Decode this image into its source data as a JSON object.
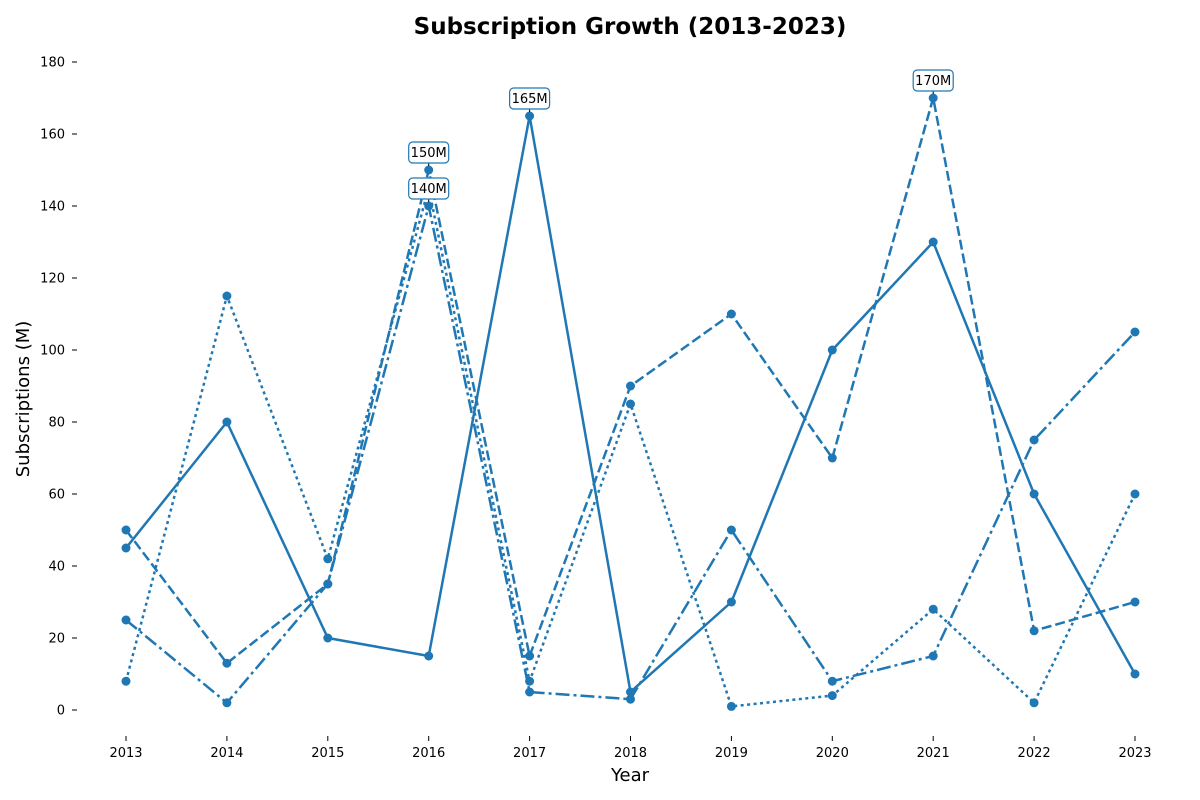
{
  "chart_data": {
    "type": "line",
    "title": "Subscription Growth (2013-2023)",
    "xlabel": "Year",
    "ylabel": "Subscriptions (M)",
    "x": [
      2013,
      2014,
      2015,
      2016,
      2017,
      2018,
      2019,
      2020,
      2021,
      2022,
      2023
    ],
    "ylim": [
      -7,
      185
    ],
    "yticks": [
      0,
      20,
      40,
      60,
      80,
      100,
      120,
      140,
      160,
      180
    ],
    "color": "#1f77b4",
    "grid": false,
    "legend": "none",
    "series": [
      {
        "style": "solid",
        "values": [
          45,
          80,
          20,
          15,
          165,
          5,
          30,
          100,
          130,
          60,
          10
        ]
      },
      {
        "style": "dashed",
        "values": [
          50,
          13,
          35,
          150,
          15,
          90,
          110,
          70,
          170,
          22,
          30
        ]
      },
      {
        "style": "dotted",
        "values": [
          8,
          115,
          42,
          145,
          8,
          85,
          1,
          4,
          28,
          2,
          60
        ]
      },
      {
        "style": "dashdot",
        "values": [
          25,
          2,
          35,
          140,
          5,
          3,
          50,
          8,
          15,
          75,
          105
        ]
      }
    ],
    "annotations": [
      {
        "x": 2016,
        "y": 150,
        "text": "150M"
      },
      {
        "x": 2016,
        "y": 140,
        "text": "140M"
      },
      {
        "x": 2017,
        "y": 165,
        "text": "165M"
      },
      {
        "x": 2021,
        "y": 170,
        "text": "170M"
      }
    ]
  }
}
